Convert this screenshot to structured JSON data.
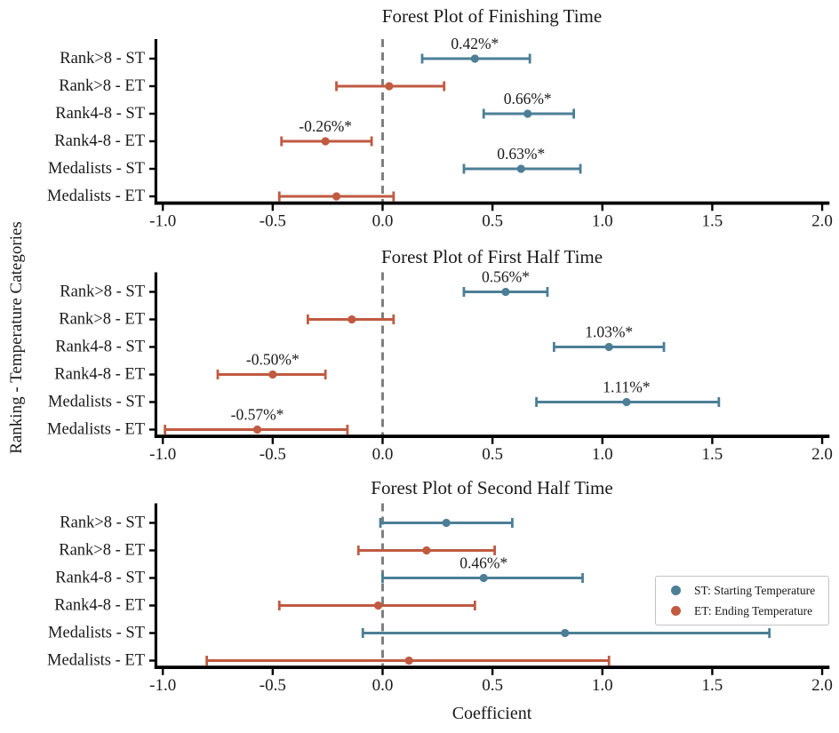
{
  "figure": {
    "xlabel": "Coefficient",
    "ylabel": "Ranking - Temperature Categories"
  },
  "legend": {
    "entries": [
      {
        "key": "ST",
        "label": "ST: Starting Temperature",
        "color": "#4C7F96"
      },
      {
        "key": "ET",
        "label": "ET: Ending Temperature",
        "color": "#C05A41"
      }
    ]
  },
  "colors": {
    "st": "#4C7F96",
    "et": "#C05A41",
    "zero_line": "#7f7f7f",
    "axis": "#000000",
    "text": "#1a1a1a"
  },
  "chart_data": [
    {
      "type": "scatter",
      "subtype": "forest-plot",
      "title": "Forest Plot of Finishing Time",
      "xlim": [
        -1.025,
        2.02
      ],
      "xticks": [
        -1.0,
        -0.5,
        0.0,
        0.5,
        1.0,
        1.5,
        2.0
      ],
      "xtick_labels": [
        "-1.0",
        "-0.5",
        "0.0",
        "0.5",
        "1.0",
        "1.5",
        "2.0"
      ],
      "zero_line": 0.0,
      "grid": false,
      "rows": [
        {
          "label": "Rank>8 - ST",
          "series": "ST",
          "value": 0.42,
          "ci": [
            0.18,
            0.67
          ],
          "annotation": "0.42%*"
        },
        {
          "label": "Rank>8 - ET",
          "series": "ET",
          "value": 0.03,
          "ci": [
            -0.21,
            0.28
          ],
          "annotation": null
        },
        {
          "label": "Rank4-8 - ST",
          "series": "ST",
          "value": 0.66,
          "ci": [
            0.46,
            0.87
          ],
          "annotation": "0.66%*"
        },
        {
          "label": "Rank4-8 - ET",
          "series": "ET",
          "value": -0.26,
          "ci": [
            -0.46,
            -0.05
          ],
          "annotation": "-0.26%*"
        },
        {
          "label": "Medalists - ST",
          "series": "ST",
          "value": 0.63,
          "ci": [
            0.37,
            0.9
          ],
          "annotation": "0.63%*"
        },
        {
          "label": "Medalists - ET",
          "series": "ET",
          "value": -0.21,
          "ci": [
            -0.47,
            0.05
          ],
          "annotation": null
        }
      ]
    },
    {
      "type": "scatter",
      "subtype": "forest-plot",
      "title": "Forest Plot of First Half Time",
      "xlim": [
        -1.025,
        2.02
      ],
      "xticks": [
        -1.0,
        -0.5,
        0.0,
        0.5,
        1.0,
        1.5,
        2.0
      ],
      "xtick_labels": [
        "-1.0",
        "-0.5",
        "0.0",
        "0.5",
        "1.0",
        "1.5",
        "2.0"
      ],
      "zero_line": 0.0,
      "grid": false,
      "rows": [
        {
          "label": "Rank>8 - ST",
          "series": "ST",
          "value": 0.56,
          "ci": [
            0.37,
            0.75
          ],
          "annotation": "0.56%*"
        },
        {
          "label": "Rank>8 - ET",
          "series": "ET",
          "value": -0.14,
          "ci": [
            -0.34,
            0.05
          ],
          "annotation": null
        },
        {
          "label": "Rank4-8 - ST",
          "series": "ST",
          "value": 1.03,
          "ci": [
            0.78,
            1.28
          ],
          "annotation": "1.03%*"
        },
        {
          "label": "Rank4-8 - ET",
          "series": "ET",
          "value": -0.5,
          "ci": [
            -0.75,
            -0.26
          ],
          "annotation": "-0.50%*"
        },
        {
          "label": "Medalists - ST",
          "series": "ST",
          "value": 1.11,
          "ci": [
            0.7,
            1.53
          ],
          "annotation": "1.11%*"
        },
        {
          "label": "Medalists - ET",
          "series": "ET",
          "value": -0.57,
          "ci": [
            -0.99,
            -0.16
          ],
          "annotation": "-0.57%*"
        }
      ]
    },
    {
      "type": "scatter",
      "subtype": "forest-plot",
      "title": "Forest Plot of Second Half Time",
      "xlim": [
        -1.025,
        2.02
      ],
      "xticks": [
        -1.0,
        -0.5,
        0.0,
        0.5,
        1.0,
        1.5,
        2.0
      ],
      "xtick_labels": [
        "-1.0",
        "-0.5",
        "0.0",
        "0.5",
        "1.0",
        "1.5",
        "2.0"
      ],
      "zero_line": 0.0,
      "grid": false,
      "rows": [
        {
          "label": "Rank>8 - ST",
          "series": "ST",
          "value": 0.29,
          "ci": [
            -0.01,
            0.59
          ],
          "annotation": null
        },
        {
          "label": "Rank>8 - ET",
          "series": "ET",
          "value": 0.2,
          "ci": [
            -0.11,
            0.51
          ],
          "annotation": null
        },
        {
          "label": "Rank4-8 - ST",
          "series": "ST",
          "value": 0.46,
          "ci": [
            0.0,
            0.91
          ],
          "annotation": "0.46%*"
        },
        {
          "label": "Rank4-8 - ET",
          "series": "ET",
          "value": -0.02,
          "ci": [
            -0.47,
            0.42
          ],
          "annotation": null
        },
        {
          "label": "Medalists - ST",
          "series": "ST",
          "value": 0.83,
          "ci": [
            -0.09,
            1.76
          ],
          "annotation": null
        },
        {
          "label": "Medalists - ET",
          "series": "ET",
          "value": 0.12,
          "ci": [
            -0.8,
            1.03
          ],
          "annotation": null
        }
      ]
    }
  ]
}
